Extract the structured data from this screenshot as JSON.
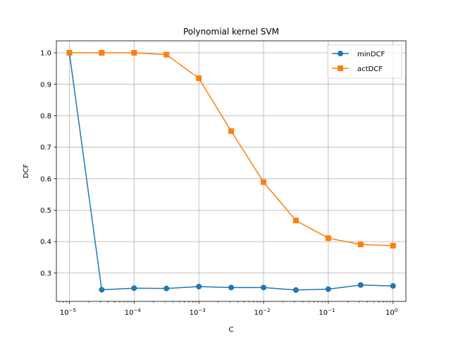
{
  "chart_data": {
    "type": "line",
    "title": "Polynomial kernel SVM",
    "xlabel": "C",
    "ylabel": "DCF",
    "xscale": "log",
    "x": [
      1e-05,
      3.16e-05,
      0.0001,
      0.000316,
      0.001,
      0.00316,
      0.01,
      0.0316,
      0.1,
      0.316,
      1
    ],
    "xlim": [
      6.3e-06,
      1.58
    ],
    "ylim": [
      0.21,
      1.038
    ],
    "x_ticks": [
      {
        "value": 1e-05,
        "base": "10",
        "exp": "−5"
      },
      {
        "value": 0.0001,
        "base": "10",
        "exp": "−4"
      },
      {
        "value": 0.001,
        "base": "10",
        "exp": "−3"
      },
      {
        "value": 0.01,
        "base": "10",
        "exp": "−2"
      },
      {
        "value": 0.1,
        "base": "10",
        "exp": "−1"
      },
      {
        "value": 1,
        "base": "10",
        "exp": "0"
      }
    ],
    "y_ticks": [
      {
        "value": 0.3,
        "label": "0.3"
      },
      {
        "value": 0.4,
        "label": "0.4"
      },
      {
        "value": 0.5,
        "label": "0.5"
      },
      {
        "value": 0.6,
        "label": "0.6"
      },
      {
        "value": 0.7,
        "label": "0.7"
      },
      {
        "value": 0.8,
        "label": "0.8"
      },
      {
        "value": 0.9,
        "label": "0.9"
      },
      {
        "value": 1.0,
        "label": "1.0"
      }
    ],
    "grid": true,
    "legend_position": "top-right",
    "series": [
      {
        "name": "minDCF",
        "color": "#1f77b4",
        "marker": "circle",
        "values": [
          1.0,
          0.247,
          0.252,
          0.251,
          0.257,
          0.254,
          0.254,
          0.246,
          0.249,
          0.262,
          0.259
        ]
      },
      {
        "name": "actDCF",
        "color": "#ff7f0e",
        "marker": "square",
        "values": [
          1.0,
          1.0,
          1.0,
          0.994,
          0.919,
          0.751,
          0.589,
          0.467,
          0.411,
          0.391,
          0.387
        ]
      }
    ]
  }
}
